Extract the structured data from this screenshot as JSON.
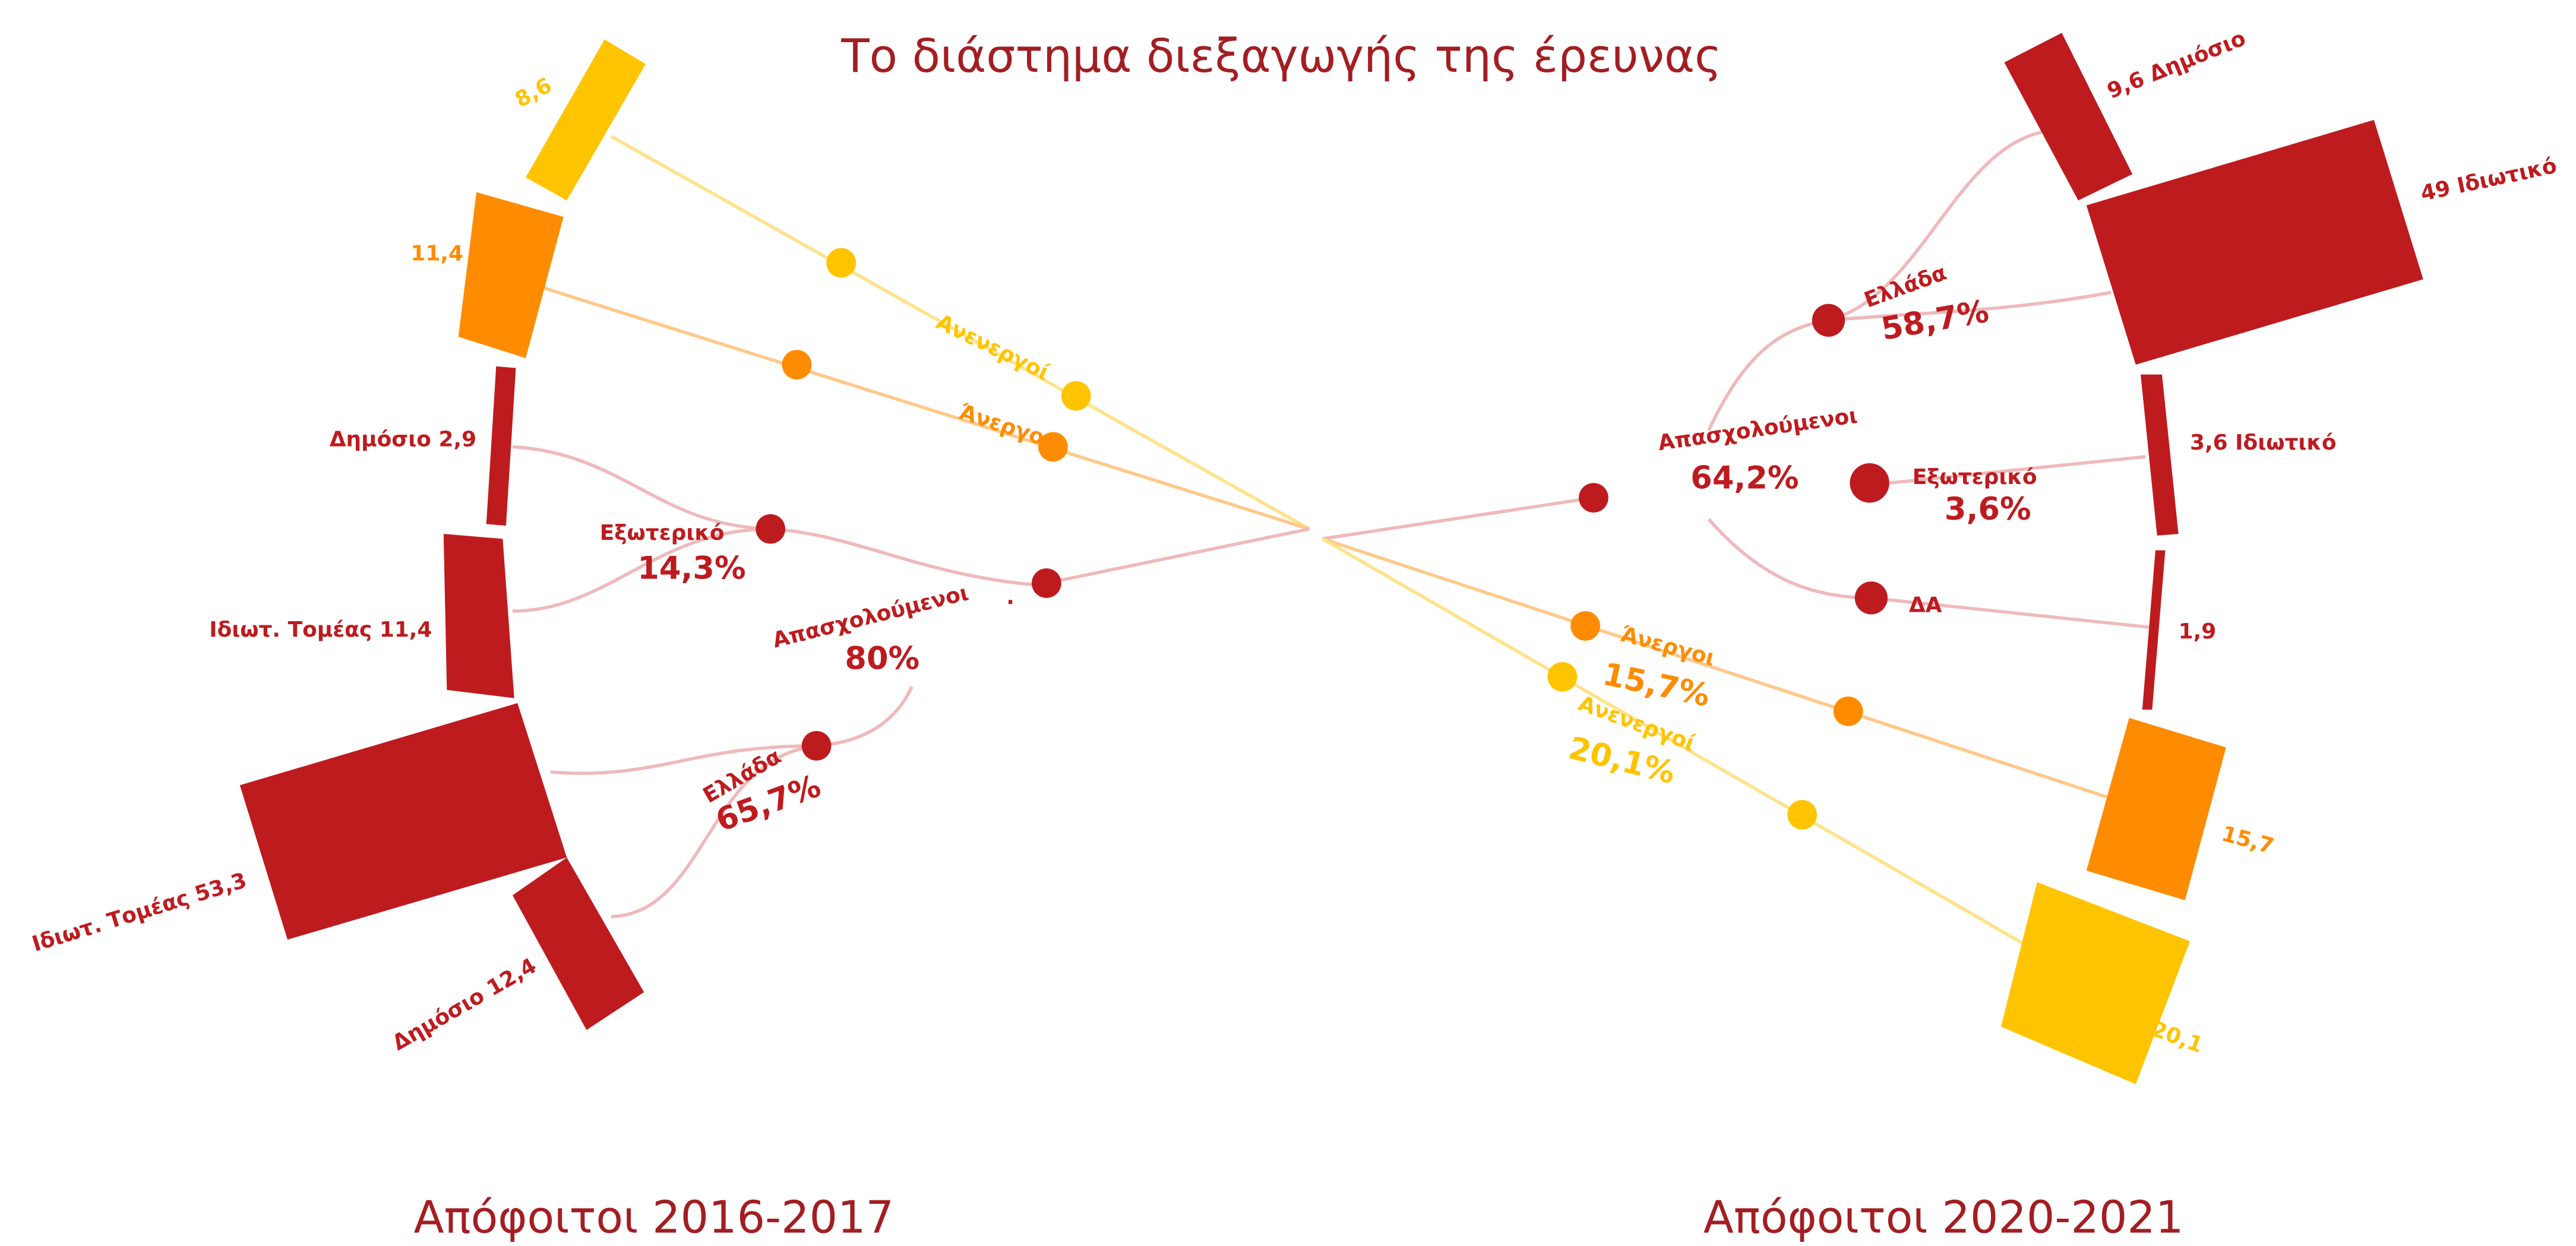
{
  "title": "Το διάστημα διεξαγωγής της έρευνας",
  "left": {
    "cohort": "Απόφοιτοι 2016-2017",
    "bars": [
      "8,6",
      "11,4",
      "Δημόσιο 2,9",
      "Ιδιωτ. Τομέας 11,4",
      "Ιδιωτ. Τομέας 53,3",
      "Δημόσιο 12,4"
    ],
    "inactive": "Ανενεργοί",
    "unemployed": "Άνεργοι",
    "employed": {
      "label": "Απασχολούμενοι",
      "percent": "80%"
    },
    "abroad": {
      "label": "Εξωτερικό",
      "percent": "14,3%"
    },
    "greece": {
      "label": "Ελλάδα",
      "percent": "65,7%"
    },
    "dot": "."
  },
  "right": {
    "cohort": "Απόφοιτοι 2020-2021",
    "bars": [
      "9,6 Δημόσιο",
      "49 Ιδιωτικό",
      "3,6 Ιδιωτικό",
      "1,9",
      "15,7",
      "20,1"
    ],
    "employed": {
      "label": "Απασχολούμενοι",
      "percent": "64,2%"
    },
    "greece": {
      "label": "Ελλάδα",
      "percent": "58,7%"
    },
    "abroad": {
      "label": "Εξωτερικό",
      "percent": "3,6%"
    },
    "na": "ΔΑ",
    "unemployed": {
      "label": "Άνεργοι",
      "percent": "15,7%"
    },
    "inactive": {
      "label": "Ανενεργοί",
      "percent": "20,1%"
    }
  }
}
